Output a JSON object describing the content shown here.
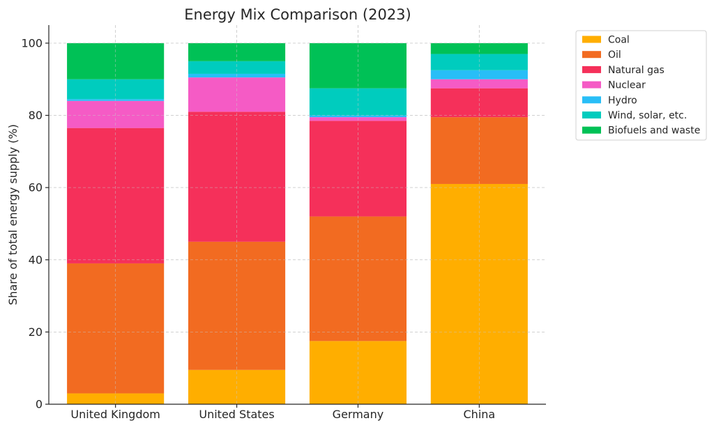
{
  "chart_data": {
    "type": "bar",
    "stacked": true,
    "title": "Energy Mix Comparison (2023)",
    "xlabel": "",
    "ylabel": "Share of total energy supply (%)",
    "ylim": [
      0,
      105
    ],
    "yticks": [
      0,
      20,
      40,
      60,
      80,
      100
    ],
    "grid": true,
    "legend_position": "outside-top-right",
    "categories": [
      "United Kingdom",
      "United States",
      "Germany",
      "China"
    ],
    "series": [
      {
        "name": "Coal",
        "color": "#FFAE00",
        "values": [
          3,
          9.5,
          17.5,
          61
        ]
      },
      {
        "name": "Oil",
        "color": "#F26B21",
        "values": [
          36,
          35.5,
          34.5,
          18.5
        ]
      },
      {
        "name": "Natural gas",
        "color": "#F5305A",
        "values": [
          37.5,
          36,
          26.5,
          8
        ]
      },
      {
        "name": "Nuclear",
        "color": "#F55BC5",
        "values": [
          7.5,
          9.5,
          1,
          2.5
        ]
      },
      {
        "name": "Hydro",
        "color": "#28BEF7",
        "values": [
          0.5,
          1,
          0.5,
          2.5
        ]
      },
      {
        "name": "Wind, solar, etc.",
        "color": "#00CCBE",
        "values": [
          5.5,
          3.5,
          7.5,
          4.5
        ]
      },
      {
        "name": "Biofuels and waste",
        "color": "#00C156",
        "values": [
          10,
          5,
          12.5,
          3
        ]
      }
    ]
  }
}
